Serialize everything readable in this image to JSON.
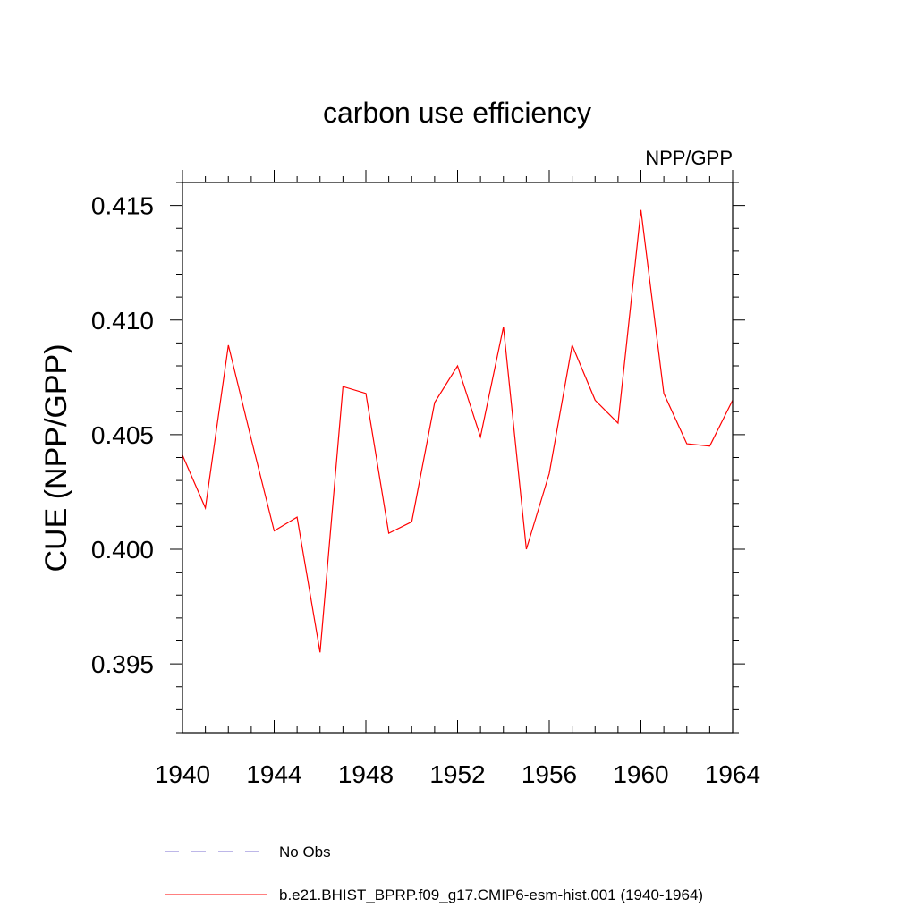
{
  "chart_data": {
    "type": "line",
    "title": "carbon use efficiency",
    "subtitle": "NPP/GPP",
    "xlabel": "",
    "ylabel": "CUE  (NPP/GPP)",
    "xlim": [
      1940,
      1964
    ],
    "ylim": [
      0.392,
      0.416
    ],
    "x_ticks": [
      1940,
      1944,
      1948,
      1952,
      1956,
      1960,
      1964
    ],
    "x_tick_labels": [
      "1940",
      "1944",
      "1948",
      "1952",
      "1956",
      "1960",
      "1964"
    ],
    "y_ticks": [
      0.395,
      0.4,
      0.405,
      0.41,
      0.415
    ],
    "y_tick_labels": [
      "0.395",
      "0.400",
      "0.405",
      "0.410",
      "0.415"
    ],
    "grid": false,
    "series": [
      {
        "name": "b.e21.BHIST_BPRP.f09_g17.CMIP6-esm-hist.001 (1940-1964)",
        "color": "#ff0000",
        "style": "solid",
        "x": [
          1940,
          1941,
          1942,
          1943,
          1944,
          1945,
          1946,
          1947,
          1948,
          1949,
          1950,
          1951,
          1952,
          1953,
          1954,
          1955,
          1956,
          1957,
          1958,
          1959,
          1960,
          1961,
          1962,
          1963,
          1964
        ],
        "values": [
          0.4041,
          0.4018,
          0.4089,
          0.4048,
          0.4008,
          0.4014,
          0.3955,
          0.4071,
          0.4068,
          0.4007,
          0.4012,
          0.4064,
          0.408,
          0.4049,
          0.4097,
          0.4,
          0.4033,
          0.4089,
          0.4065,
          0.4055,
          0.4148,
          0.4068,
          0.4046,
          0.4045,
          0.4065
        ]
      }
    ],
    "legend": {
      "placement": "bottom",
      "entries": [
        {
          "label": "No Obs",
          "color": "#7b6fd0",
          "style": "dashed"
        },
        {
          "label": "b.e21.BHIST_BPRP.f09_g17.CMIP6-esm-hist.001 (1940-1964)",
          "color": "#ff0000",
          "style": "solid"
        }
      ]
    }
  }
}
